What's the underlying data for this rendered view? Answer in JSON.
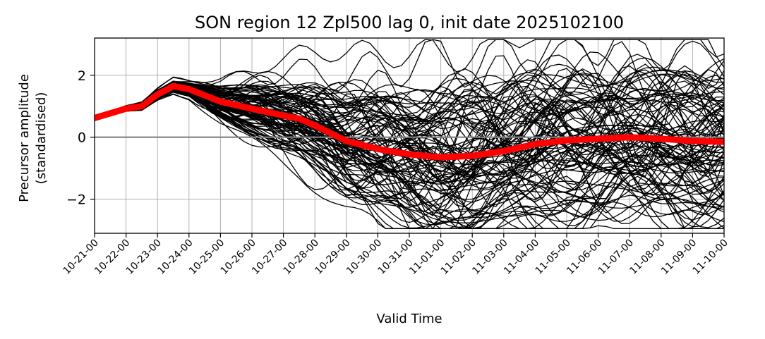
{
  "chart_data": {
    "type": "line",
    "title": "SON region 12 Zpl500 lag 0, init date 2025102100",
    "xlabel": "Valid Time",
    "ylabel_lines": [
      "Precursor amplitude",
      "(standardised)"
    ],
    "x_categories": [
      "10-21-00",
      "10-22-00",
      "10-23-00",
      "10-24-00",
      "10-25-00",
      "10-26-00",
      "10-27-00",
      "10-28-00",
      "10-29-00",
      "10-30-00",
      "10-31-00",
      "11-01-00",
      "11-02-00",
      "11-03-00",
      "11-04-00",
      "11-05-00",
      "11-06-00",
      "11-07-00",
      "11-08-00",
      "11-09-00",
      "11-10-00"
    ],
    "x_unit": "days since first tick",
    "xlim": [
      0,
      20
    ],
    "ylim": [
      -3.1,
      3.2
    ],
    "yticks": [
      -2,
      0,
      2
    ],
    "ytick_labels": [
      "−2",
      "0",
      "2"
    ],
    "grid": true,
    "zero_line_color": "#808080",
    "member_color": "#000000",
    "mean_color": "#ff0000",
    "ensemble": {
      "name": "ensemble members",
      "members": 100,
      "common_start": {
        "x": [
          0,
          1,
          1.5,
          2,
          2.5,
          3
        ],
        "y": [
          0.65,
          0.92,
          1.0,
          1.38,
          1.65,
          1.6
        ]
      },
      "spread_growth": "members diverge after 10-24-00; spread reaches roughly ±2.5 by 11-01-00",
      "range": [
        -2.95,
        3.15
      ]
    },
    "ensemble_mean": {
      "name": "ensemble mean",
      "x": [
        0,
        1,
        1.5,
        2,
        2.5,
        3,
        4,
        5,
        6,
        6.5,
        7,
        8,
        9,
        10,
        11,
        12,
        13,
        14,
        15,
        16,
        17,
        18,
        19,
        20
      ],
      "y": [
        0.62,
        0.92,
        1.0,
        1.38,
        1.65,
        1.55,
        1.15,
        0.92,
        0.7,
        0.6,
        0.38,
        -0.12,
        -0.38,
        -0.55,
        -0.65,
        -0.6,
        -0.45,
        -0.22,
        -0.1,
        -0.05,
        0.0,
        -0.05,
        -0.12,
        -0.15
      ]
    }
  }
}
